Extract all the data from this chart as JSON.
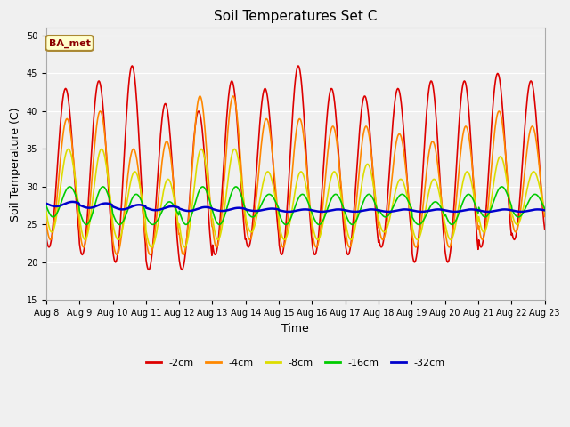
{
  "title": "Soil Temperatures Set C",
  "xlabel": "Time",
  "ylabel": "Soil Temperature (C)",
  "ylim": [
    15,
    51
  ],
  "yticks": [
    15,
    20,
    25,
    30,
    35,
    40,
    45,
    50
  ],
  "xtick_labels": [
    "Aug 8",
    "Aug 9",
    "Aug 10",
    "Aug 11",
    "Aug 12",
    "Aug 13",
    "Aug 14",
    "Aug 15",
    "Aug 16",
    "Aug 17",
    "Aug 18",
    "Aug 19",
    "Aug 20",
    "Aug 21",
    "Aug 22",
    "Aug 23"
  ],
  "annotation_text": "BA_met",
  "annotation_bg": "#ffffcc",
  "annotation_border": "#aa8833",
  "plot_bg": "#f0f0f0",
  "fig_bg": "#f0f0f0",
  "colors": {
    "-2cm": "#dd0000",
    "-4cm": "#ff8800",
    "-8cm": "#dddd00",
    "-16cm": "#00cc00",
    "-32cm": "#0000cc"
  },
  "line_widths": {
    "-2cm": 1.2,
    "-4cm": 1.2,
    "-8cm": 1.2,
    "-16cm": 1.2,
    "-32cm": 1.8
  },
  "peaks_2": [
    43,
    44,
    46,
    41,
    40,
    44,
    43,
    46,
    43,
    42,
    43,
    44,
    44,
    45,
    44
  ],
  "troughs_2": [
    22,
    21,
    20,
    19,
    19,
    21,
    22,
    21,
    21,
    21,
    22,
    20,
    20,
    22,
    23
  ],
  "peaks_4": [
    39,
    40,
    35,
    36,
    42,
    42,
    39,
    39,
    38,
    38,
    37,
    36,
    38,
    40,
    38
  ],
  "troughs_4": [
    23,
    22,
    21,
    21,
    21,
    22,
    23,
    22,
    22,
    22,
    23,
    22,
    22,
    23,
    24
  ],
  "peaks_8": [
    35,
    35,
    32,
    31,
    35,
    35,
    32,
    32,
    32,
    33,
    31,
    31,
    32,
    34,
    32
  ],
  "troughs_8": [
    24,
    23,
    23,
    22,
    22,
    23,
    24,
    23,
    23,
    23,
    24,
    23,
    23,
    24,
    25
  ],
  "peaks_16": [
    30,
    30,
    29,
    28,
    30,
    30,
    29,
    29,
    29,
    29,
    29,
    28,
    29,
    30,
    29
  ],
  "troughs_16": [
    26,
    25,
    25,
    25,
    25,
    25,
    26,
    25,
    25,
    25,
    26,
    25,
    25,
    26,
    26
  ],
  "peaks_32": [
    28.0,
    27.8,
    27.6,
    27.4,
    27.3,
    27.2,
    27.1,
    27.0,
    27.0,
    27.0,
    27.0,
    27.0,
    27.0,
    27.0,
    27.0
  ],
  "troughs_32": [
    27.4,
    27.2,
    27.0,
    26.9,
    26.8,
    26.8,
    26.8,
    26.7,
    26.7,
    26.7,
    26.7,
    26.7,
    26.7,
    26.7,
    26.7
  ],
  "peak_hour_2": 14,
  "peak_hour_4": 15,
  "peak_hour_8": 16,
  "peak_hour_16": 17,
  "peak_hour_32": 19
}
